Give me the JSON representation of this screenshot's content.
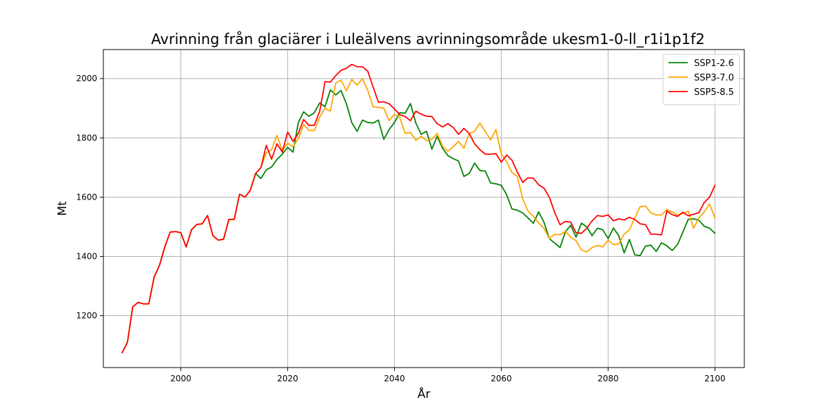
{
  "chart_data": {
    "type": "line",
    "title": "Avrinning från glaciärer i Luleälvens avrinningsområde ukesm1-0-ll_r1i1p1f2",
    "xlabel": "År",
    "ylabel": "Mt",
    "xlim": [
      1985.5,
      2105.5
    ],
    "ylim": [
      1025,
      2098
    ],
    "xticks": [
      2000,
      2020,
      2040,
      2060,
      2080,
      2100
    ],
    "yticks": [
      1200,
      1400,
      1600,
      1800,
      2000
    ],
    "grid": true,
    "legend_position": "top-right",
    "series": [
      {
        "name": "SSP1-2.6",
        "color": "#008000",
        "x": [
          1989,
          1990,
          1991,
          1992,
          1993,
          1994,
          1995,
          1996,
          1997,
          1998,
          1999,
          2000,
          2001,
          2002,
          2003,
          2004,
          2005,
          2006,
          2007,
          2008,
          2009,
          2010,
          2011,
          2012,
          2013,
          2014,
          2015,
          2016,
          2017,
          2018,
          2019,
          2020,
          2021,
          2022,
          2023,
          2024,
          2025,
          2026,
          2027,
          2028,
          2029,
          2030,
          2031,
          2032,
          2033,
          2034,
          2035,
          2036,
          2037,
          2038,
          2039,
          2040,
          2041,
          2042,
          2043,
          2044,
          2045,
          2046,
          2047,
          2048,
          2049,
          2050,
          2051,
          2052,
          2053,
          2054,
          2055,
          2056,
          2057,
          2058,
          2059,
          2060,
          2061,
          2062,
          2063,
          2064,
          2065,
          2066,
          2067,
          2068,
          2069,
          2070,
          2071,
          2072,
          2073,
          2074,
          2075,
          2076,
          2077,
          2078,
          2079,
          2080,
          2081,
          2082,
          2083,
          2084,
          2085,
          2086,
          2087,
          2088,
          2089,
          2090,
          2091,
          2092,
          2093,
          2094,
          2095,
          2096,
          2097,
          2098,
          2099,
          2100
        ],
        "y": [
          1075,
          1110,
          1230,
          1245,
          1240,
          1240,
          1330,
          1370,
          1432,
          1482,
          1484,
          1480,
          1432,
          1490,
          1508,
          1510,
          1538,
          1470,
          1455,
          1458,
          1525,
          1525,
          1610,
          1600,
          1623,
          1680,
          1663,
          1692,
          1702,
          1727,
          1745,
          1768,
          1752,
          1852,
          1888,
          1873,
          1885,
          1918,
          1905,
          1962,
          1945,
          1960,
          1915,
          1852,
          1822,
          1860,
          1852,
          1850,
          1860,
          1795,
          1828,
          1852,
          1885,
          1883,
          1916,
          1850,
          1812,
          1822,
          1762,
          1805,
          1765,
          1740,
          1730,
          1722,
          1670,
          1680,
          1715,
          1690,
          1688,
          1648,
          1645,
          1640,
          1608,
          1560,
          1556,
          1547,
          1530,
          1512,
          1550,
          1515,
          1460,
          1445,
          1430,
          1483,
          1505,
          1465,
          1512,
          1500,
          1470,
          1495,
          1490,
          1460,
          1496,
          1470,
          1412,
          1457,
          1405,
          1403,
          1435,
          1438,
          1417,
          1446,
          1436,
          1420,
          1440,
          1482,
          1525,
          1527,
          1522,
          1502,
          1495,
          1478
        ]
      },
      {
        "name": "SSP3-7.0",
        "color": "#FFA500",
        "x": [
          1989,
          1990,
          1991,
          1992,
          1993,
          1994,
          1995,
          1996,
          1997,
          1998,
          1999,
          2000,
          2001,
          2002,
          2003,
          2004,
          2005,
          2006,
          2007,
          2008,
          2009,
          2010,
          2011,
          2012,
          2013,
          2014,
          2015,
          2016,
          2017,
          2018,
          2019,
          2020,
          2021,
          2022,
          2023,
          2024,
          2025,
          2026,
          2027,
          2028,
          2029,
          2030,
          2031,
          2032,
          2033,
          2034,
          2035,
          2036,
          2037,
          2038,
          2039,
          2040,
          2041,
          2042,
          2043,
          2044,
          2045,
          2046,
          2047,
          2048,
          2049,
          2050,
          2051,
          2052,
          2053,
          2054,
          2055,
          2056,
          2057,
          2058,
          2059,
          2060,
          2061,
          2062,
          2063,
          2064,
          2065,
          2066,
          2067,
          2068,
          2069,
          2070,
          2071,
          2072,
          2073,
          2074,
          2075,
          2076,
          2077,
          2078,
          2079,
          2080,
          2081,
          2082,
          2083,
          2084,
          2085,
          2086,
          2087,
          2088,
          2089,
          2090,
          2091,
          2092,
          2093,
          2094,
          2095,
          2096,
          2097,
          2098,
          2099,
          2100
        ],
        "y": [
          1075,
          1110,
          1230,
          1245,
          1240,
          1240,
          1330,
          1370,
          1432,
          1482,
          1484,
          1480,
          1432,
          1490,
          1508,
          1510,
          1538,
          1470,
          1455,
          1458,
          1525,
          1525,
          1610,
          1600,
          1623,
          1680,
          1700,
          1750,
          1760,
          1808,
          1757,
          1782,
          1770,
          1798,
          1845,
          1825,
          1825,
          1870,
          1900,
          1890,
          1985,
          1995,
          1958,
          1997,
          1978,
          2000,
          1960,
          1905,
          1903,
          1900,
          1858,
          1880,
          1868,
          1815,
          1818,
          1792,
          1805,
          1790,
          1795,
          1815,
          1772,
          1755,
          1770,
          1788,
          1765,
          1815,
          1822,
          1850,
          1822,
          1793,
          1828,
          1745,
          1720,
          1683,
          1670,
          1595,
          1553,
          1535,
          1513,
          1495,
          1460,
          1475,
          1473,
          1485,
          1465,
          1453,
          1422,
          1415,
          1430,
          1437,
          1432,
          1455,
          1440,
          1442,
          1475,
          1490,
          1530,
          1568,
          1570,
          1547,
          1540,
          1540,
          1558,
          1550,
          1540,
          1545,
          1553,
          1495,
          1530,
          1550,
          1577,
          1530
        ]
      },
      {
        "name": "SSP5-8.5",
        "color": "#FF0000",
        "x": [
          1989,
          1990,
          1991,
          1992,
          1993,
          1994,
          1995,
          1996,
          1997,
          1998,
          1999,
          2000,
          2001,
          2002,
          2003,
          2004,
          2005,
          2006,
          2007,
          2008,
          2009,
          2010,
          2011,
          2012,
          2013,
          2014,
          2015,
          2016,
          2017,
          2018,
          2019,
          2020,
          2021,
          2022,
          2023,
          2024,
          2025,
          2026,
          2027,
          2028,
          2029,
          2030,
          2031,
          2032,
          2033,
          2034,
          2035,
          2036,
          2037,
          2038,
          2039,
          2040,
          2041,
          2042,
          2043,
          2044,
          2045,
          2046,
          2047,
          2048,
          2049,
          2050,
          2051,
          2052,
          2053,
          2054,
          2055,
          2056,
          2057,
          2058,
          2059,
          2060,
          2061,
          2062,
          2063,
          2064,
          2065,
          2066,
          2067,
          2068,
          2069,
          2070,
          2071,
          2072,
          2073,
          2074,
          2075,
          2076,
          2077,
          2078,
          2079,
          2080,
          2081,
          2082,
          2083,
          2084,
          2085,
          2086,
          2087,
          2088,
          2089,
          2090,
          2091,
          2092,
          2093,
          2094,
          2095,
          2096,
          2097,
          2098,
          2099,
          2100
        ],
        "y": [
          1075,
          1110,
          1230,
          1245,
          1240,
          1240,
          1330,
          1370,
          1432,
          1482,
          1484,
          1480,
          1432,
          1490,
          1508,
          1510,
          1538,
          1470,
          1455,
          1458,
          1525,
          1525,
          1610,
          1600,
          1623,
          1680,
          1700,
          1775,
          1728,
          1780,
          1752,
          1820,
          1788,
          1815,
          1862,
          1842,
          1843,
          1890,
          1990,
          1988,
          2010,
          2028,
          2035,
          2048,
          2040,
          2040,
          2025,
          1972,
          1920,
          1922,
          1915,
          1898,
          1878,
          1872,
          1858,
          1890,
          1880,
          1873,
          1872,
          1848,
          1837,
          1848,
          1835,
          1812,
          1832,
          1815,
          1780,
          1760,
          1745,
          1745,
          1747,
          1718,
          1742,
          1725,
          1685,
          1650,
          1665,
          1664,
          1642,
          1630,
          1600,
          1548,
          1507,
          1518,
          1516,
          1480,
          1478,
          1495,
          1520,
          1538,
          1535,
          1540,
          1520,
          1527,
          1523,
          1532,
          1525,
          1510,
          1507,
          1475,
          1475,
          1473,
          1553,
          1541,
          1535,
          1549,
          1537,
          1542,
          1548,
          1582,
          1600,
          1640
        ]
      }
    ]
  }
}
